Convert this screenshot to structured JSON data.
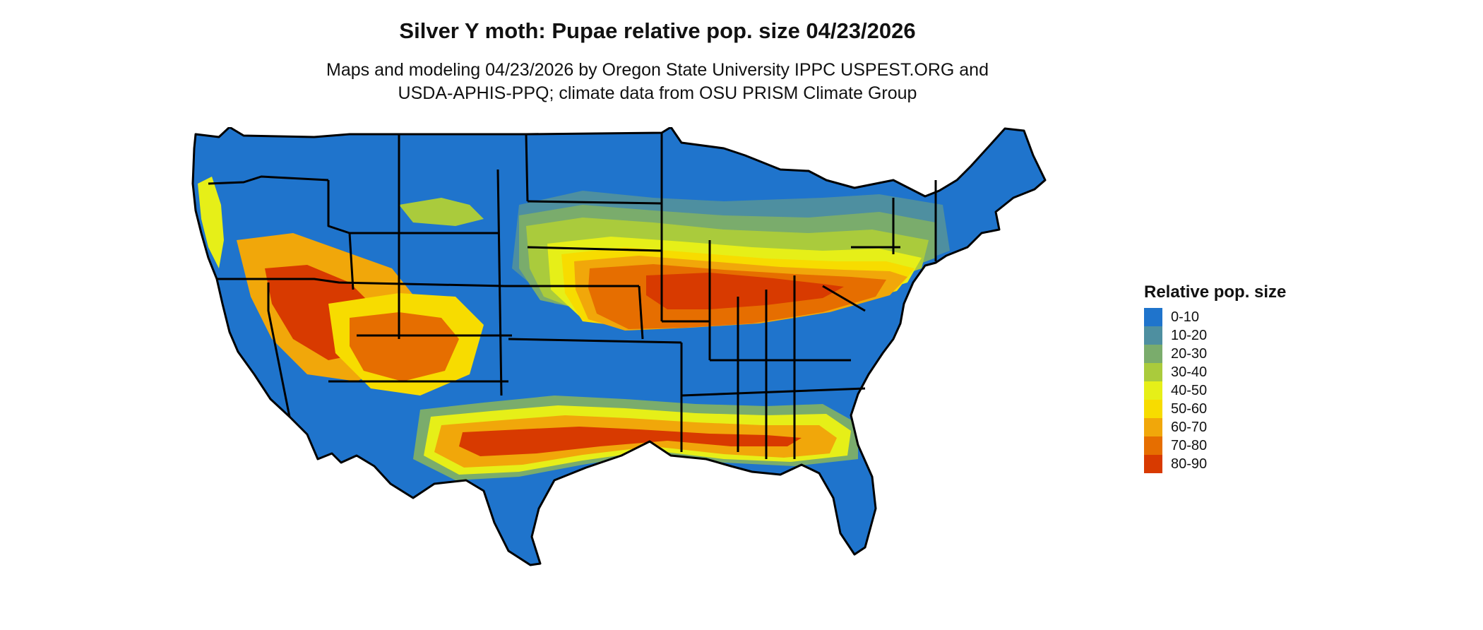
{
  "title": "Silver Y moth: Pupae relative pop. size 04/23/2026",
  "subtitle_line1": "Maps and modeling 04/23/2026 by Oregon State University IPPC USPEST.ORG and",
  "subtitle_line2": "USDA-APHIS-PPQ; climate data from OSU PRISM Climate Group",
  "legend": {
    "title": "Relative pop. size",
    "items": [
      {
        "label": "0-10",
        "color": "#1f74cc"
      },
      {
        "label": "10-20",
        "color": "#4e8fa0"
      },
      {
        "label": "20-30",
        "color": "#7aac6c"
      },
      {
        "label": "30-40",
        "color": "#aacb3c"
      },
      {
        "label": "40-50",
        "color": "#e6ef18"
      },
      {
        "label": "50-60",
        "color": "#f7dc00"
      },
      {
        "label": "60-70",
        "color": "#f1a70a"
      },
      {
        "label": "70-80",
        "color": "#e66e00"
      },
      {
        "label": "80-90",
        "color": "#d83a00"
      }
    ]
  }
}
